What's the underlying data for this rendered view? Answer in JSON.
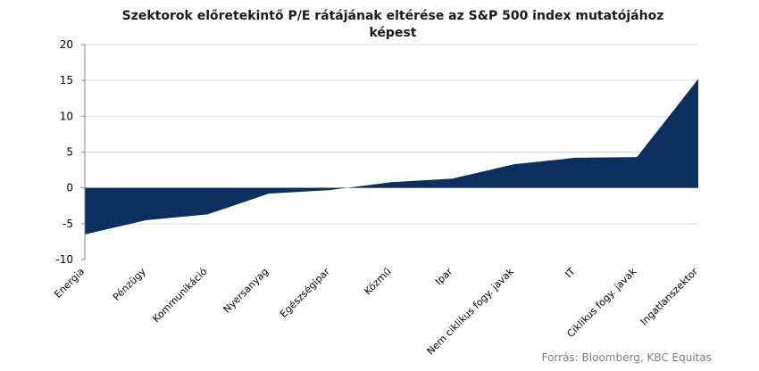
{
  "chart_data": {
    "type": "area",
    "title": "Szektorok előretekintő P/E rátájának eltérése az S&P 500 index mutatójához képest",
    "xlabel": "",
    "ylabel": "",
    "categories": [
      "Energia",
      "Pénzügy",
      "Kommunikáció",
      "Nyersanyag",
      "Egészségipar",
      "Közmű",
      "Ipar",
      "Nem ciklikus fogy. javak",
      "IT",
      "Ciklikus fogy. javak",
      "Ingatlanszektor"
    ],
    "values": [
      -6.5,
      -4.5,
      -3.7,
      -0.8,
      -0.3,
      0.8,
      1.3,
      3.3,
      4.2,
      4.3,
      15.2
    ],
    "ylim": [
      -10,
      20
    ],
    "yticks": [
      20,
      15,
      10,
      5,
      0,
      -5,
      -10
    ],
    "grid": true,
    "fill_color": "#0b2f5e"
  },
  "source": "Forrás: Bloomberg, KBC Equitas"
}
